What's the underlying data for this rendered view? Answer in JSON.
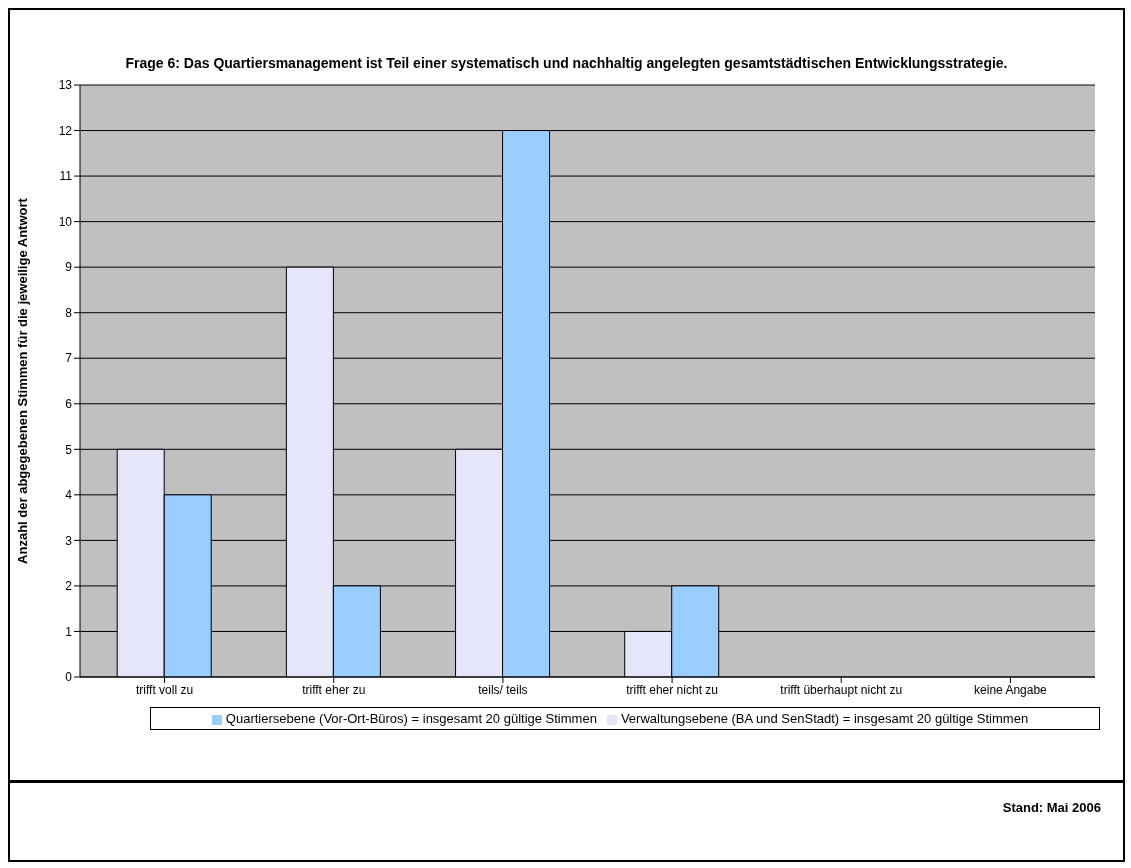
{
  "chart_data": {
    "type": "bar",
    "title": "Frage 6: Das Quartiersmanagement ist Teil einer systematisch und nachhaltig angelegten gesamtstädtischen Entwicklungsstrategie.",
    "ylabel": "Anzahl der abgegebenen Stimmen für die jeweilige Antwort",
    "categories": [
      "trifft voll zu",
      "trifft eher zu",
      "teils/ teils",
      "trifft eher nicht zu",
      "trifft überhaupt nicht zu",
      "keine Angabe"
    ],
    "series": [
      {
        "name": "Verwaltungsebene (BA und SenStadt) = insgesamt 20 gültige Stimmen",
        "color": "#e6e6fa",
        "values": [
          5,
          9,
          5,
          1,
          0,
          0
        ]
      },
      {
        "name": "Quartiersebene (Vor-Ort-Büros) = insgesamt 20 gültige Stimmen",
        "color": "#99ccff",
        "values": [
          4,
          2,
          12,
          2,
          0,
          0
        ]
      }
    ],
    "ylim": [
      0,
      13
    ],
    "yticks": [
      0,
      1,
      2,
      3,
      4,
      5,
      6,
      7,
      8,
      9,
      10,
      11,
      12,
      13
    ],
    "grid": "y",
    "legend": "bottom",
    "annotations": [
      "Stand: Mai 2006"
    ]
  }
}
